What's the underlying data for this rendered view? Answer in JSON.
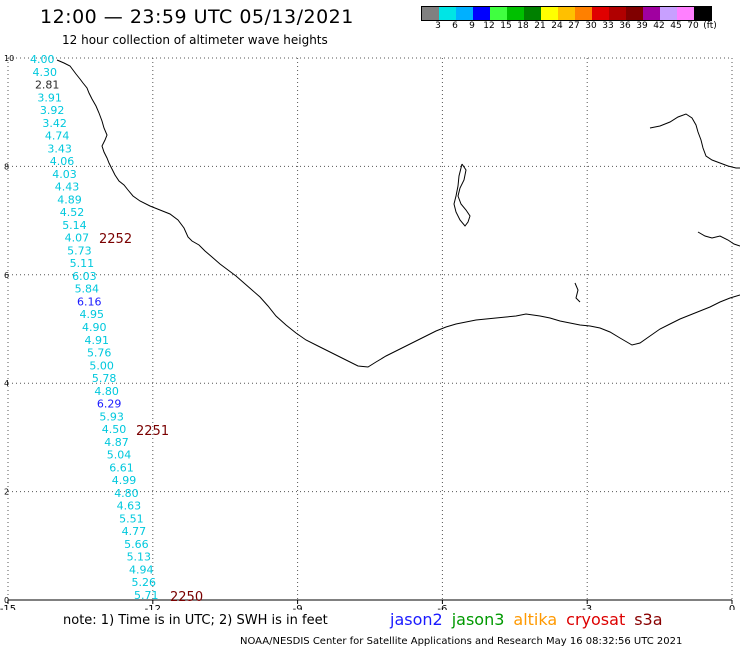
{
  "header": {
    "title": "12:00 — 23:59 UTC 05/13/2021",
    "subtitle": "12 hour collection of altimeter wave heights"
  },
  "colorbar": {
    "colors": [
      "#808080",
      "#00e5e5",
      "#00b0ff",
      "#0000ff",
      "#40ff40",
      "#00c000",
      "#008000",
      "#ffff00",
      "#ffc000",
      "#ff8000",
      "#e00000",
      "#b00000",
      "#800000",
      "#a000a0",
      "#c8a0ff",
      "#ff80ff",
      "#000000"
    ],
    "labels": [
      "3",
      "6",
      "9",
      "12",
      "15",
      "18",
      "21",
      "24",
      "27",
      "30",
      "33",
      "36",
      "39",
      "42",
      "45",
      "70",
      "(ft)"
    ]
  },
  "axes": {
    "x_ticks": [
      "-15",
      "-12",
      "-9",
      "-6",
      "-3",
      "0"
    ],
    "y_ticks": [
      "0",
      "2",
      "4",
      "6",
      "8",
      "10"
    ],
    "xlim": [
      -15,
      0
    ],
    "ylim": [
      0,
      10
    ],
    "grid": true
  },
  "wave_labels": [
    "4.00",
    "4.30",
    "2.81",
    "3.91",
    "3.92",
    "3.42",
    "4.74",
    "3.43",
    "4.06",
    "4.03",
    "4.43",
    "4.89",
    "4.52",
    "5.14",
    "4.07",
    "5.73",
    "5.11",
    "6.03",
    "5.84",
    "6.16",
    "4.95",
    "4.90",
    "4.91",
    "5.76",
    "5.00",
    "5.78",
    "4.80",
    "6.29",
    "5.93",
    "4.50",
    "4.87",
    "5.04",
    "6.61",
    "4.99",
    "4.80",
    "4.63",
    "5.51",
    "4.77",
    "5.66",
    "5.13",
    "4.94",
    "5.26",
    "5.71"
  ],
  "time_labels": [
    "2252",
    "2251",
    "2250"
  ],
  "note": "note: 1) Time is in UTC; 2) SWH is in feet",
  "legend": [
    {
      "name": "jason2",
      "color": "#1a1aff"
    },
    {
      "name": "jason3",
      "color": "#009900"
    },
    {
      "name": "altika",
      "color": "#ff9900"
    },
    {
      "name": "cryosat",
      "color": "#dd0000"
    },
    {
      "name": "s3a",
      "color": "#880000"
    }
  ],
  "footer": "NOAA/NESDIS Center for Satellite Applications and Research    May 16 08:32:56 UTC 2021"
}
